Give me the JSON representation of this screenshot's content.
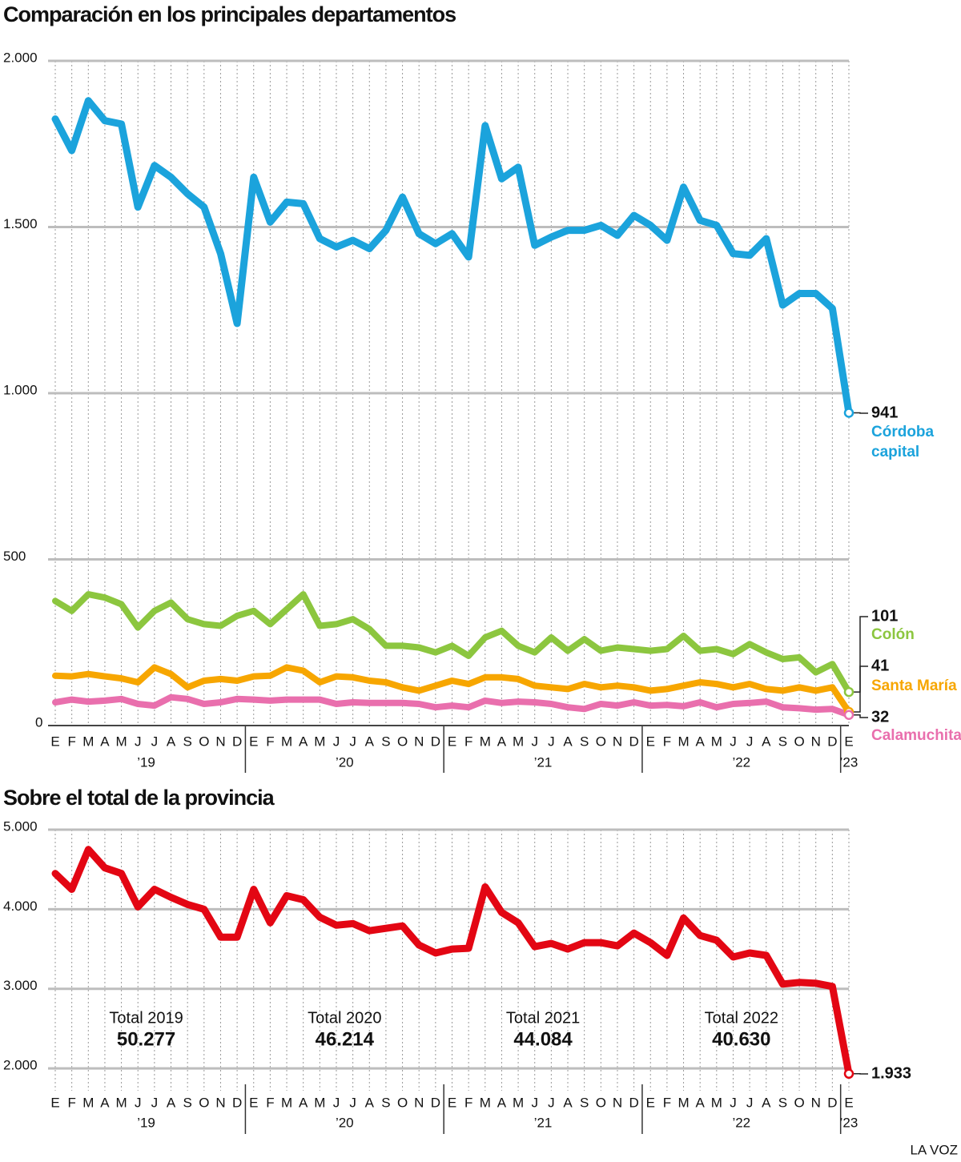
{
  "chart_data": [
    {
      "type": "line",
      "title": "Comparación en los principales departamentos",
      "categories": [
        "E",
        "F",
        "M",
        "A",
        "M",
        "J",
        "J",
        "A",
        "S",
        "O",
        "N",
        "D",
        "E",
        "F",
        "M",
        "A",
        "M",
        "J",
        "J",
        "A",
        "S",
        "O",
        "N",
        "D",
        "E",
        "F",
        "M",
        "A",
        "M",
        "J",
        "J",
        "A",
        "S",
        "O",
        "N",
        "D",
        "E",
        "F",
        "M",
        "A",
        "M",
        "J",
        "J",
        "A",
        "S",
        "O",
        "N",
        "D",
        "E"
      ],
      "years": [
        "’19",
        "’20",
        "’21",
        "’22",
        "’23"
      ],
      "ylim": [
        0,
        2000
      ],
      "yticks": [
        {
          "value": 2000,
          "label": "2.000"
        },
        {
          "value": 1500,
          "label": "1.500"
        },
        {
          "value": 1000,
          "label": "1.000"
        },
        500,
        0
      ],
      "grid": true,
      "series": [
        {
          "name": "Córdoba capital",
          "color": "#1ba3dc",
          "values": [
            1825,
            1730,
            1880,
            1820,
            1810,
            1560,
            1685,
            1650,
            1600,
            1560,
            1420,
            1210,
            1650,
            1515,
            1575,
            1570,
            1465,
            1440,
            1460,
            1435,
            1490,
            1590,
            1480,
            1450,
            1480,
            1410,
            1805,
            1645,
            1680,
            1445,
            1470,
            1490,
            1490,
            1505,
            1475,
            1535,
            1505,
            1460,
            1620,
            1520,
            1505,
            1420,
            1415,
            1465,
            1265,
            1300,
            1300,
            1255,
            941
          ]
        },
        {
          "name": "Colón",
          "color": "#8cc63f",
          "values": [
            375,
            345,
            395,
            385,
            365,
            295,
            345,
            370,
            320,
            305,
            300,
            330,
            345,
            305,
            350,
            395,
            300,
            305,
            320,
            290,
            240,
            240,
            235,
            220,
            240,
            210,
            265,
            285,
            240,
            220,
            265,
            225,
            260,
            225,
            235,
            230,
            225,
            230,
            270,
            225,
            230,
            215,
            245,
            220,
            200,
            205,
            160,
            185,
            101
          ]
        },
        {
          "name": "Santa María",
          "color": "#f7a600",
          "values": [
            150,
            148,
            155,
            148,
            142,
            130,
            175,
            155,
            115,
            135,
            140,
            135,
            148,
            150,
            175,
            165,
            130,
            148,
            145,
            135,
            130,
            115,
            105,
            120,
            135,
            125,
            145,
            145,
            140,
            120,
            115,
            110,
            125,
            115,
            120,
            115,
            105,
            110,
            120,
            130,
            125,
            115,
            125,
            110,
            105,
            115,
            105,
            115,
            41
          ]
        },
        {
          "name": "Calamuchita",
          "color": "#e96fad",
          "values": [
            70,
            78,
            72,
            75,
            80,
            65,
            60,
            85,
            80,
            65,
            70,
            80,
            78,
            75,
            78,
            78,
            78,
            65,
            70,
            68,
            68,
            68,
            65,
            55,
            60,
            55,
            75,
            68,
            72,
            70,
            65,
            55,
            50,
            65,
            60,
            70,
            60,
            62,
            58,
            70,
            55,
            65,
            68,
            72,
            55,
            52,
            48,
            50,
            32
          ]
        }
      ]
    },
    {
      "type": "line",
      "title": "Sobre el total de la provincia",
      "categories": [
        "E",
        "F",
        "M",
        "A",
        "M",
        "J",
        "J",
        "A",
        "S",
        "O",
        "N",
        "D",
        "E",
        "F",
        "M",
        "A",
        "M",
        "J",
        "J",
        "A",
        "S",
        "O",
        "N",
        "D",
        "E",
        "F",
        "M",
        "A",
        "M",
        "J",
        "J",
        "A",
        "S",
        "O",
        "N",
        "D",
        "E",
        "F",
        "M",
        "A",
        "M",
        "J",
        "J",
        "A",
        "S",
        "O",
        "N",
        "D",
        "E"
      ],
      "years": [
        "’19",
        "’20",
        "’21",
        "’22",
        "’23"
      ],
      "ylim": [
        1800,
        5000
      ],
      "yticks": [
        {
          "value": 5000,
          "label": "5.000"
        },
        {
          "value": 4000,
          "label": "4.000"
        },
        {
          "value": 3000,
          "label": "3.000"
        },
        {
          "value": 2000,
          "label": "2.000"
        }
      ],
      "grid": true,
      "series": [
        {
          "color": "#e30613",
          "values": [
            4450,
            4250,
            4750,
            4520,
            4450,
            4030,
            4250,
            4150,
            4060,
            4000,
            3650,
            3650,
            4250,
            3830,
            4170,
            4120,
            3900,
            3800,
            3820,
            3730,
            3760,
            3790,
            3550,
            3450,
            3500,
            3510,
            4280,
            3960,
            3830,
            3530,
            3570,
            3500,
            3580,
            3580,
            3540,
            3700,
            3580,
            3420,
            3890,
            3670,
            3610,
            3400,
            3450,
            3420,
            3060,
            3080,
            3070,
            3030,
            1933
          ],
          "value_labels": [
            null,
            null,
            null,
            null,
            null,
            null,
            null,
            null,
            null,
            null,
            null,
            null,
            null,
            null,
            null,
            null,
            null,
            null,
            null,
            null,
            null,
            null,
            null,
            null,
            null,
            null,
            null,
            null,
            null,
            null,
            null,
            null,
            null,
            null,
            null,
            null,
            null,
            null,
            null,
            null,
            null,
            null,
            null,
            null,
            null,
            null,
            null,
            null,
            "1.933"
          ]
        }
      ],
      "annotations": [
        {
          "title": "Total 2019",
          "value": "50.277"
        },
        {
          "title": "Total 2020",
          "value": "46.214"
        },
        {
          "title": "Total 2021",
          "value": "44.084"
        },
        {
          "title": "Total 2022",
          "value": "40.630"
        }
      ]
    }
  ],
  "source": "LA VOZ"
}
